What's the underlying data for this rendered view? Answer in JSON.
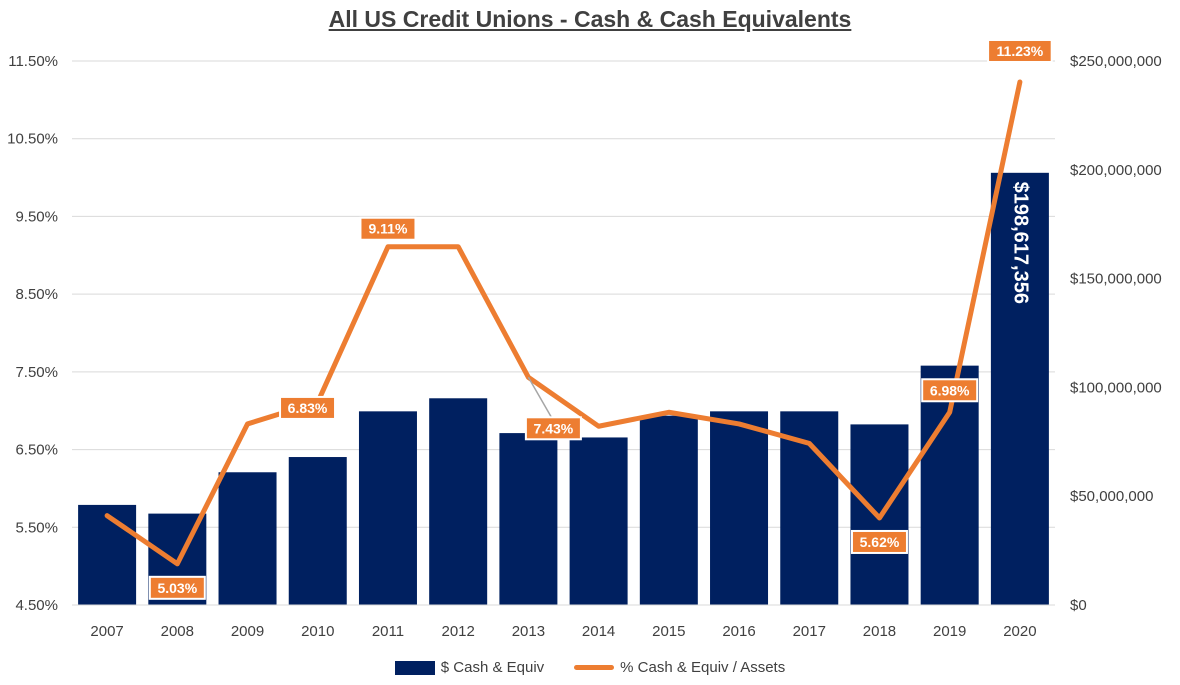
{
  "title": "All US Credit Unions - Cash & Cash Equivalents",
  "colors": {
    "bar": "#002060",
    "line": "#ED7D31",
    "grid": "#d9d9d9",
    "label_border": "#ffffff"
  },
  "legend": {
    "position": "bottom",
    "bar_label": "$ Cash & Equiv",
    "line_label": "% Cash & Equiv / Assets"
  },
  "chart_data": {
    "type": "bar",
    "categories": [
      "2007",
      "2008",
      "2009",
      "2010",
      "2011",
      "2012",
      "2013",
      "2014",
      "2015",
      "2016",
      "2017",
      "2018",
      "2019",
      "2020"
    ],
    "series": [
      {
        "name": "$ Cash & Equiv",
        "type": "bar",
        "axis": "right",
        "values": [
          46000000,
          42000000,
          61000000,
          68000000,
          89000000,
          95000000,
          79000000,
          77000000,
          87000000,
          89000000,
          89000000,
          83000000,
          110000000,
          198617356
        ]
      },
      {
        "name": "% Cash & Equiv / Assets",
        "type": "line",
        "axis": "left",
        "values": [
          5.65,
          5.03,
          6.83,
          7.11,
          9.11,
          9.11,
          7.43,
          6.8,
          6.98,
          6.83,
          6.58,
          5.62,
          6.98,
          11.23
        ]
      }
    ],
    "bar_data_labels": [
      {
        "index": 13,
        "text": "$198,617,356"
      }
    ],
    "line_data_labels": [
      {
        "index": 1,
        "text": "5.03%"
      },
      {
        "index": 2,
        "text": "6.83%"
      },
      {
        "index": 4,
        "text": "9.11%"
      },
      {
        "index": 6,
        "text": "7.43%"
      },
      {
        "index": 11,
        "text": "5.62%"
      },
      {
        "index": 12,
        "text": "6.98%"
      },
      {
        "index": 13,
        "text": "11.23%"
      }
    ],
    "y_left": {
      "min": 4.5,
      "max": 11.5,
      "ticks": [
        4.5,
        5.5,
        6.5,
        7.5,
        8.5,
        9.5,
        10.5,
        11.5
      ],
      "tick_labels": [
        "4.50%",
        "5.50%",
        "6.50%",
        "7.50%",
        "8.50%",
        "9.50%",
        "10.50%",
        "11.50%"
      ]
    },
    "y_right": {
      "min": 0,
      "max": 250000000,
      "ticks": [
        0,
        50000000,
        100000000,
        150000000,
        200000000,
        250000000
      ],
      "tick_labels": [
        "$0",
        "$50,000,000",
        "$100,000,000",
        "$150,000,000",
        "$200,000,000",
        "$250,000,000"
      ]
    },
    "grid": true
  }
}
